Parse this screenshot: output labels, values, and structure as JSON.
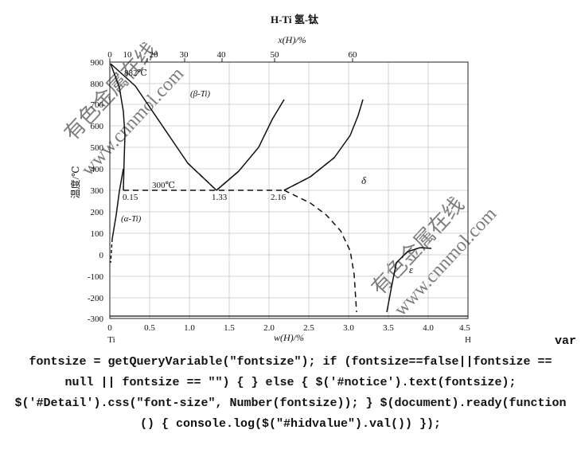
{
  "title": "H-Ti   氢-钛",
  "top_axis_label": "x(H)/%",
  "top_ticks": [
    "0",
    "10",
    "20",
    "30",
    "40",
    "50",
    "60"
  ],
  "bottom_axis_label": "w(H)/%",
  "bottom_ticks": [
    "0",
    "0.5",
    "1.0",
    "1.5",
    "2.0",
    "2.5",
    "3.0",
    "3.5",
    "4.0",
    "4.5"
  ],
  "y_axis_label": "温度/℃",
  "y_ticks": [
    "900",
    "800",
    "700",
    "600",
    "500",
    "400",
    "300",
    "200",
    "100",
    "0",
    "-100",
    "-200",
    "-300"
  ],
  "left_end_label": "Ti",
  "right_end_label": "H",
  "annotations": {
    "t882": "882℃",
    "beta": "(β-Ti)",
    "alpha": "(α-Ti)",
    "t300": "300℃",
    "c015": "0.15",
    "c133": "1.33",
    "c216": "2.16",
    "delta": "δ",
    "epsilon": "ε"
  },
  "watermark": {
    "text_cn": "有色金属在线",
    "text_url": "www.cnnmol.com"
  },
  "code_lines": [
    "var",
    "fontsize = getQueryVariable(\"fontsize\"); if (fontsize==false||fontsize ==",
    "null || fontsize == \"\") { } else { $('#notice').text(fontsize);",
    "$('#Detail').css(\"font-size\", Number(fontsize)); } $(document).ready(function",
    "() { console.log($(\"#hidvalue\").val()) });"
  ]
}
